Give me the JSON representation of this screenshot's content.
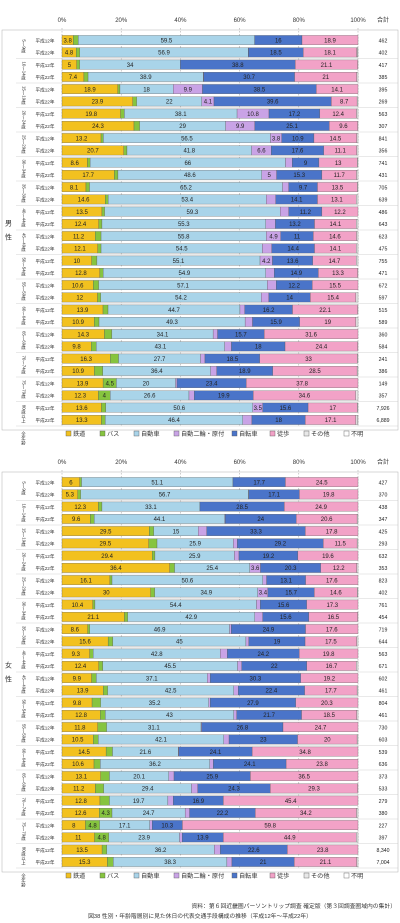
{
  "chart_data": {
    "type": "bar",
    "stacked": "percent-horizontal",
    "caption_source": "資料：第６回近畿圏パーソントリップ調査 確定版（第３回調査圏域内の集計）",
    "caption_title": "図38 性別・年齢階層別に見た休日の代表交通手段構成の推移（平成12年～平成22年）",
    "x_ticks": [
      "0%",
      "20%",
      "40%",
      "60%",
      "80%",
      "100%"
    ],
    "total_header": "合計",
    "modes": [
      "鉄道",
      "バス",
      "自動車",
      "自動二輪・原付",
      "自転車",
      "徒歩",
      "その他",
      "不明"
    ],
    "colors": {
      "鉄道": "#f2c11f",
      "バス": "#86c43f",
      "自動車": "#a9d4e9",
      "自動二輪・原付": "#c9a3e6",
      "自転車": "#4a74c9",
      "徒歩": "#f2a2c7",
      "その他": "#e8e8e8",
      "不明": "#ffffff"
    },
    "year_labels": [
      "平成12年",
      "平成22年"
    ],
    "panels": [
      {
        "sex_label": "男　性",
        "age_groups": [
          "5〜9歳",
          "10〜14歳",
          "15〜19歳",
          "20〜24歳",
          "25〜29歳",
          "30〜34歳",
          "35〜39歳",
          "40〜44歳",
          "45〜49歳",
          "50〜54歳",
          "55〜59歳",
          "60〜64歳",
          "65〜69歳",
          "70〜74歳",
          "75〜79歳",
          "80歳以上",
          "全年齢"
        ],
        "rows": [
          {
            "year": "平成12年",
            "values": [
              3.8,
              1.7,
              59.5,
              0,
              16.0,
              18.9,
              0,
              0
            ],
            "total": "462"
          },
          {
            "year": "平成22年",
            "values": [
              4.8,
              1.2,
              56.9,
              0.1,
              18.5,
              18.1,
              0.2,
              0.2
            ],
            "total": "402"
          },
          {
            "year": "平成12年",
            "values": [
              5.0,
              1.0,
              34.0,
              0,
              38.8,
              21.1,
              0.1,
              0
            ],
            "total": "417"
          },
          {
            "year": "平成22年",
            "values": [
              7.4,
              1.4,
              38.9,
              0.1,
              30.7,
              21.0,
              0.4,
              0
            ],
            "total": "385"
          },
          {
            "year": "平成12年",
            "values": [
              18.9,
              0.7,
              18.0,
              9.9,
              38.5,
              14.1,
              0,
              0
            ],
            "total": "395"
          },
          {
            "year": "平成22年",
            "values": [
              23.9,
              1.3,
              22.0,
              4.1,
              39.6,
              8.7,
              0.3,
              0
            ],
            "total": "269"
          },
          {
            "year": "平成12年",
            "values": [
              19.8,
              1.3,
              38.1,
              10.8,
              17.2,
              12.4,
              0.5,
              0
            ],
            "total": "563"
          },
          {
            "year": "平成22年",
            "values": [
              24.3,
              1.9,
              29.0,
              9.9,
              25.1,
              9.6,
              0.1,
              0
            ],
            "total": "307"
          },
          {
            "year": "平成12年",
            "values": [
              13.2,
              0.8,
              56.5,
              3.8,
              10.9,
              14.5,
              0.4,
              0
            ],
            "total": "841"
          },
          {
            "year": "平成22年",
            "values": [
              20.7,
              1.1,
              41.8,
              6.6,
              17.6,
              11.1,
              0.4,
              0
            ],
            "total": "356"
          },
          {
            "year": "平成12年",
            "values": [
              8.6,
              0.9,
              66.0,
              2.3,
              9.0,
              13.0,
              0.2,
              0
            ],
            "total": "741"
          },
          {
            "year": "平成22年",
            "values": [
              17.7,
              1.2,
              48.6,
              5.0,
              15.3,
              11.7,
              0.5,
              0
            ],
            "total": "431"
          },
          {
            "year": "平成12年",
            "values": [
              8.1,
              1.2,
              65.2,
              2.1,
              9.7,
              13.5,
              0.2,
              0
            ],
            "total": "705"
          },
          {
            "year": "平成22年",
            "values": [
              14.6,
              1.0,
              53.4,
              3.2,
              14.1,
              13.1,
              0.6,
              0
            ],
            "total": "639"
          },
          {
            "year": "平成12年",
            "values": [
              13.5,
              0.9,
              59.3,
              2.9,
              11.2,
              12.2,
              0,
              0
            ],
            "total": "486"
          },
          {
            "year": "平成22年",
            "values": [
              12.4,
              1.1,
              55.3,
              3.3,
              13.2,
              14.1,
              0.6,
              0
            ],
            "total": "643"
          },
          {
            "year": "平成12年",
            "values": [
              11.2,
              2.0,
              55.8,
              4.9,
              11.0,
              14.6,
              0.5,
              0
            ],
            "total": "623"
          },
          {
            "year": "平成22年",
            "values": [
              12.1,
              1.1,
              54.5,
              3.2,
              14.4,
              14.1,
              0.6,
              0
            ],
            "total": "475"
          },
          {
            "year": "平成12年",
            "values": [
              10.0,
              1.8,
              55.1,
              4.2,
              13.6,
              14.7,
              0.6,
              0
            ],
            "total": "755"
          },
          {
            "year": "平成22年",
            "values": [
              12.8,
              1.1,
              54.9,
              2.9,
              14.9,
              13.3,
              0.1,
              0
            ],
            "total": "471"
          },
          {
            "year": "平成12年",
            "values": [
              10.6,
              1.8,
              57.1,
              3.0,
              12.2,
              15.5,
              0,
              0
            ],
            "total": "672"
          },
          {
            "year": "平成22年",
            "values": [
              12.0,
              1.1,
              54.2,
              2.6,
              14.0,
              15.4,
              0.7,
              0
            ],
            "total": "597"
          },
          {
            "year": "平成12年",
            "values": [
              13.9,
              1.7,
              44.7,
              1.6,
              16.2,
              22.1,
              0.1,
              0
            ],
            "total": "515"
          },
          {
            "year": "平成22年",
            "values": [
              10.9,
              1.6,
              49.3,
              2.5,
              15.9,
              19.0,
              0.7,
              0
            ],
            "total": "589"
          },
          {
            "year": "平成12年",
            "values": [
              14.3,
              2.5,
              34.1,
              1.5,
              15.7,
              31.6,
              0,
              0
            ],
            "total": "360"
          },
          {
            "year": "平成22年",
            "values": [
              9.8,
              1.7,
              43.1,
              2.3,
              18.0,
              24.4,
              0.1,
              0
            ],
            "total": "584"
          },
          {
            "year": "平成12年",
            "values": [
              16.3,
              2.8,
              27.7,
              1.5,
              18.5,
              33.0,
              0.2,
              0
            ],
            "total": "241"
          },
          {
            "year": "平成22年",
            "values": [
              10.9,
              2.9,
              36.4,
              2.1,
              18.9,
              28.5,
              0.3,
              0
            ],
            "total": "386"
          },
          {
            "year": "平成12年",
            "values": [
              13.9,
              4.5,
              20.0,
              0.5,
              23.4,
              37.8,
              0,
              0
            ],
            "total": "149"
          },
          {
            "year": "平成22年",
            "values": [
              12.3,
              4.0,
              26.6,
              1.8,
              19.9,
              34.6,
              0.8,
              0
            ],
            "total": "357"
          },
          {
            "year": "平成12年",
            "values": [
              13.6,
              1.5,
              50.6,
              3.5,
              15.6,
              17.0,
              0.2,
              0
            ],
            "total": "7,926"
          },
          {
            "year": "平成22年",
            "values": [
              13.3,
              1.3,
              46.4,
              3.1,
              18.0,
              17.1,
              0.6,
              0.1
            ],
            "total": "6,889"
          }
        ]
      },
      {
        "sex_label": "女　性",
        "age_groups": [
          "5〜9歳",
          "10〜14歳",
          "15〜19歳",
          "20〜24歳",
          "25〜29歳",
          "30〜34歳",
          "35〜39歳",
          "40〜44歳",
          "45〜49歳",
          "50〜54歳",
          "55〜59歳",
          "60〜64歳",
          "65〜69歳",
          "70〜74歳",
          "75〜79歳",
          "80歳以上",
          "全年齢"
        ],
        "rows": [
          {
            "year": "平成12年",
            "values": [
              6.0,
              0.6,
              51.1,
              0,
              17.7,
              24.5,
              0,
              0
            ],
            "total": "427"
          },
          {
            "year": "平成22年",
            "values": [
              5.3,
              1.0,
              56.7,
              0.1,
              17.1,
              19.8,
              0,
              0
            ],
            "total": "370"
          },
          {
            "year": "平成12年",
            "values": [
              12.3,
              1.2,
              33.1,
              0,
              28.5,
              24.9,
              0,
              0
            ],
            "total": "438"
          },
          {
            "year": "平成22年",
            "values": [
              9.6,
              1.3,
              44.1,
              0.2,
              24.0,
              20.6,
              0.3,
              0
            ],
            "total": "347"
          },
          {
            "year": "平成12年",
            "values": [
              29.5,
              1.5,
              15.0,
              2.9,
              33.3,
              17.8,
              0,
              0
            ],
            "total": "425"
          },
          {
            "year": "平成22年",
            "values": [
              29.5,
              2.8,
              25.9,
              1.4,
              29.2,
              11.5,
              0.3,
              0
            ],
            "total": "293"
          },
          {
            "year": "平成12年",
            "values": [
              29.4,
              0.9,
              25.9,
              1.5,
              19.2,
              19.6,
              0,
              0
            ],
            "total": "632"
          },
          {
            "year": "平成22年",
            "values": [
              36.4,
              1.6,
              25.4,
              3.6,
              20.3,
              12.2,
              0.4,
              0
            ],
            "total": "353"
          },
          {
            "year": "平成12年",
            "values": [
              16.1,
              0.7,
              50.6,
              1.3,
              13.1,
              17.6,
              0,
              0
            ],
            "total": "823"
          },
          {
            "year": "平成22年",
            "values": [
              30.0,
              1.4,
              34.9,
              3.4,
              15.7,
              14.6,
              0.2,
              0
            ],
            "total": "402"
          },
          {
            "year": "平成12年",
            "values": [
              10.4,
              0.7,
              54.4,
              1.3,
              15.6,
              17.3,
              0,
              0
            ],
            "total": "761"
          },
          {
            "year": "平成22年",
            "values": [
              21.1,
              1.1,
              42.9,
              2.7,
              15.6,
              16.5,
              0.1,
              0
            ],
            "total": "454"
          },
          {
            "year": "平成12年",
            "values": [
              8.6,
              0.7,
              46.9,
              0.6,
              24.9,
              17.6,
              0,
              0
            ],
            "total": "719"
          },
          {
            "year": "平成22年",
            "values": [
              15.6,
              1.6,
              45.0,
              1.0,
              19.0,
              17.5,
              0.4,
              0
            ],
            "total": "644"
          },
          {
            "year": "平成12年",
            "values": [
              9.3,
              1.2,
              42.8,
              2.4,
              24.2,
              19.8,
              0,
              0
            ],
            "total": "563"
          },
          {
            "year": "平成22年",
            "values": [
              12.4,
              1.4,
              45.5,
              1.4,
              22.0,
              16.7,
              0.6,
              0
            ],
            "total": "671"
          },
          {
            "year": "平成12年",
            "values": [
              9.9,
              1.6,
              37.1,
              1.0,
              30.3,
              19.2,
              0,
              0
            ],
            "total": "602"
          },
          {
            "year": "平成22年",
            "values": [
              13.9,
              1.5,
              42.5,
              1.5,
              22.4,
              17.7,
              0.3,
              0
            ],
            "total": "461"
          },
          {
            "year": "平成12年",
            "values": [
              9.8,
              2.8,
              35.2,
              0.5,
              27.9,
              20.3,
              0,
              0
            ],
            "total": "804"
          },
          {
            "year": "平成22年",
            "values": [
              12.8,
              1.7,
              43.0,
              1.0,
              21.7,
              18.5,
              0.4,
              0
            ],
            "total": "461"
          },
          {
            "year": "平成12年",
            "values": [
              11.8,
              2.9,
              31.1,
              0.2,
              26.8,
              24.7,
              0,
              0
            ],
            "total": "730"
          },
          {
            "year": "平成22年",
            "values": [
              10.5,
              1.7,
              42.1,
              1.8,
              23.0,
              20.0,
              0.3,
              0
            ],
            "total": "603"
          },
          {
            "year": "平成12年",
            "values": [
              14.5,
              2.1,
              21.6,
              0.2,
              24.1,
              34.8,
              0,
              0
            ],
            "total": "539"
          },
          {
            "year": "平成22年",
            "values": [
              10.6,
              2.1,
              36.2,
              1.2,
              24.1,
              23.8,
              0,
              0
            ],
            "total": "636"
          },
          {
            "year": "平成12年",
            "values": [
              13.1,
              3.0,
              20.1,
              1.8,
              25.9,
              36.5,
              0,
              0
            ],
            "total": "373"
          },
          {
            "year": "平成22年",
            "values": [
              11.2,
              2.8,
              29.4,
              2.1,
              24.3,
              29.3,
              0.1,
              0
            ],
            "total": "533"
          },
          {
            "year": "平成12年",
            "values": [
              12.8,
              3.2,
              19.7,
              1.8,
              16.9,
              45.4,
              0,
              0
            ],
            "total": "279"
          },
          {
            "year": "平成22年",
            "values": [
              12.6,
              4.3,
              24.7,
              1.5,
              22.2,
              34.2,
              0.5,
              0
            ],
            "total": "380"
          },
          {
            "year": "平成12年",
            "values": [
              8.0,
              4.8,
              17.1,
              0.8,
              10.3,
              59.8,
              0,
              0
            ],
            "total": "227"
          },
          {
            "year": "平成22年",
            "values": [
              11.0,
              4.8,
              23.9,
              0.9,
              13.9,
              44.9,
              0.6,
              0
            ],
            "total": "397"
          },
          {
            "year": "平成12年",
            "values": [
              13.5,
              1.6,
              36.2,
              2.0,
              22.6,
              23.8,
              0,
              0
            ],
            "total": "8,340"
          },
          {
            "year": "平成22年",
            "values": [
              15.3,
              2.0,
              38.3,
              1.7,
              21.0,
              21.1,
              0.4,
              0
            ],
            "total": "7,004"
          }
        ]
      }
    ]
  }
}
